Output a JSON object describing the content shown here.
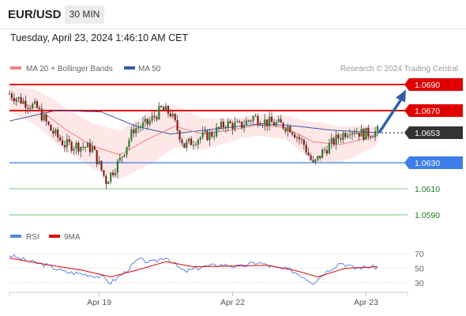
{
  "header": {
    "symbol": "EUR/USD",
    "timeframe": "30 MIN",
    "timestamp": "Tuesday, April 23, 2024 1:46:10 AM CET"
  },
  "colors": {
    "resistance": "#e00000",
    "support": "#3d7ee8",
    "target": "#1f7a1f",
    "ma20": "#f08080",
    "ma50": "#3b5ba5",
    "rsi": "#5b87e0",
    "rsi_ma": "#e00000",
    "candle_up": "#2e7d32",
    "candle_down": "#8b1a1a",
    "arrow": "#2f5fa7",
    "band_fill": "#fde3e3"
  },
  "chart_data": [
    {
      "type": "candlestick",
      "legend": [
        {
          "name": "MA 20 + Bollinger Bands",
          "color": "#f08080"
        },
        {
          "name": "MA 50",
          "color": "#3b5ba5"
        }
      ],
      "legend_position": "top-left",
      "annotation": "Research © 2024 Trading Central",
      "ylim": [
        1.0585,
        1.0697
      ],
      "x_ticks": [
        "Apr 19",
        "Apr 22",
        "Apr 23"
      ],
      "levels": [
        {
          "value": 1.069,
          "label": "1.0690",
          "kind": "resistance"
        },
        {
          "value": 1.067,
          "label": "1.0670",
          "kind": "resistance"
        },
        {
          "value": 1.0653,
          "label": "1.0653",
          "kind": "current"
        },
        {
          "value": 1.063,
          "label": "1.0630",
          "kind": "support"
        },
        {
          "value": 1.061,
          "label": "1.0610",
          "kind": "target"
        },
        {
          "value": 1.059,
          "label": "1.0590",
          "kind": "target"
        }
      ],
      "projection": {
        "from": 1.0653,
        "to": 1.0686,
        "direction": "up"
      },
      "keypoints": [
        [
          0,
          1.0683
        ],
        [
          6,
          1.0677
        ],
        [
          12,
          1.0672
        ],
        [
          18,
          1.0655
        ],
        [
          24,
          1.0644
        ],
        [
          30,
          1.0643
        ],
        [
          36,
          1.0641
        ],
        [
          42,
          1.0616
        ],
        [
          48,
          1.0632
        ],
        [
          54,
          1.0656
        ],
        [
          60,
          1.066
        ],
        [
          66,
          1.0671
        ],
        [
          70,
          1.0668
        ],
        [
          76,
          1.0643
        ],
        [
          82,
          1.0649
        ],
        [
          88,
          1.0652
        ],
        [
          94,
          1.066
        ],
        [
          100,
          1.0658
        ],
        [
          106,
          1.0665
        ],
        [
          112,
          1.0661
        ],
        [
          116,
          1.066
        ],
        [
          122,
          1.0657
        ],
        [
          128,
          1.0644
        ],
        [
          132,
          1.0628
        ],
        [
          136,
          1.0638
        ],
        [
          142,
          1.0648
        ],
        [
          148,
          1.0656
        ],
        [
          154,
          1.0652
        ],
        [
          160,
          1.0654
        ]
      ],
      "ma20_points": [
        [
          0,
          1.0679
        ],
        [
          12,
          1.0672
        ],
        [
          24,
          1.0656
        ],
        [
          36,
          1.0643
        ],
        [
          48,
          1.0636
        ],
        [
          60,
          1.0648
        ],
        [
          72,
          1.0658
        ],
        [
          84,
          1.0652
        ],
        [
          96,
          1.0655
        ],
        [
          108,
          1.0659
        ],
        [
          120,
          1.0657
        ],
        [
          132,
          1.0646
        ],
        [
          144,
          1.0644
        ],
        [
          160,
          1.0651
        ]
      ],
      "band_width": [
        [
          0,
          0.001
        ],
        [
          20,
          0.0016
        ],
        [
          45,
          0.0018
        ],
        [
          62,
          0.002
        ],
        [
          80,
          0.0013
        ],
        [
          100,
          0.0008
        ],
        [
          120,
          0.0009
        ],
        [
          135,
          0.0016
        ],
        [
          150,
          0.0012
        ],
        [
          160,
          0.0007
        ]
      ],
      "ma50_points": [
        [
          0,
          1.0662
        ],
        [
          20,
          1.067
        ],
        [
          40,
          1.0669
        ],
        [
          55,
          1.0658
        ],
        [
          70,
          1.0652
        ],
        [
          90,
          1.0656
        ],
        [
          110,
          1.066
        ],
        [
          125,
          1.0658
        ],
        [
          140,
          1.0655
        ],
        [
          160,
          1.0653
        ]
      ]
    },
    {
      "type": "line",
      "legend": [
        {
          "name": "RSI",
          "color": "#5b87e0"
        },
        {
          "name": "9MA",
          "color": "#e00000"
        }
      ],
      "ylim": [
        25,
        75
      ],
      "y_ticks": [
        70,
        50,
        30
      ],
      "rsi_points": [
        [
          0,
          68
        ],
        [
          8,
          60
        ],
        [
          16,
          54
        ],
        [
          24,
          45
        ],
        [
          32,
          42
        ],
        [
          40,
          38
        ],
        [
          44,
          30
        ],
        [
          50,
          44
        ],
        [
          56,
          62
        ],
        [
          62,
          58
        ],
        [
          68,
          66
        ],
        [
          72,
          55
        ],
        [
          76,
          45
        ],
        [
          84,
          52
        ],
        [
          92,
          55
        ],
        [
          100,
          52
        ],
        [
          108,
          58
        ],
        [
          116,
          50
        ],
        [
          122,
          48
        ],
        [
          128,
          38
        ],
        [
          132,
          30
        ],
        [
          138,
          46
        ],
        [
          144,
          58
        ],
        [
          150,
          50
        ],
        [
          156,
          52
        ],
        [
          160,
          51
        ]
      ],
      "rsi_ma_points": [
        [
          0,
          64
        ],
        [
          16,
          55
        ],
        [
          32,
          47
        ],
        [
          44,
          38
        ],
        [
          56,
          48
        ],
        [
          68,
          59
        ],
        [
          80,
          52
        ],
        [
          96,
          53
        ],
        [
          112,
          54
        ],
        [
          124,
          47
        ],
        [
          134,
          38
        ],
        [
          146,
          50
        ],
        [
          160,
          52
        ]
      ]
    }
  ]
}
